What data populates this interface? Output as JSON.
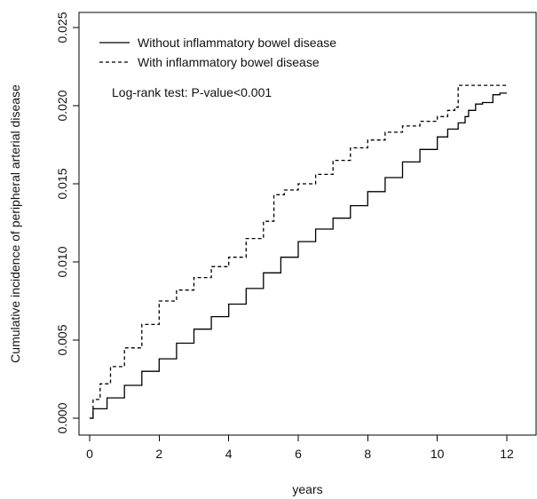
{
  "chart_data": {
    "type": "line",
    "title": "",
    "xlabel": "years",
    "ylabel": "Cumulative incidence of peripheral arterial disease",
    "xlim": [
      0,
      12
    ],
    "ylim": [
      0,
      0.025
    ],
    "xticks": [
      0,
      2,
      4,
      6,
      8,
      10,
      12
    ],
    "xtick_labels": [
      "0",
      "2",
      "4",
      "6",
      "8",
      "10",
      "12"
    ],
    "yticks": [
      0,
      0.005,
      0.01,
      0.015,
      0.02,
      0.025
    ],
    "ytick_labels": [
      "0.000",
      "0.005",
      "0.010",
      "0.015",
      "0.020",
      "0.025"
    ],
    "grid": false,
    "legend_position": "top-left",
    "annotation": "Log-rank test: P-value<0.001",
    "series": [
      {
        "name": "Without inflammatory bowel disease",
        "line_style": "solid",
        "color": "#000000",
        "x": [
          0,
          0.1,
          0.5,
          1.0,
          1.5,
          2.0,
          2.5,
          3.0,
          3.5,
          4.0,
          4.5,
          5.0,
          5.5,
          6.0,
          6.5,
          7.0,
          7.5,
          8.0,
          8.5,
          9.0,
          9.5,
          10.0,
          10.3,
          10.6,
          10.8,
          10.9,
          11.1,
          11.3,
          11.5,
          11.6,
          11.8,
          12.0
        ],
        "y": [
          0,
          0.0006,
          0.0013,
          0.0021,
          0.003,
          0.0038,
          0.0048,
          0.0057,
          0.0065,
          0.0073,
          0.0083,
          0.0093,
          0.0103,
          0.0113,
          0.0121,
          0.0128,
          0.0136,
          0.0145,
          0.0154,
          0.0164,
          0.0172,
          0.018,
          0.0185,
          0.0189,
          0.0193,
          0.0197,
          0.0201,
          0.0202,
          0.0202,
          0.0207,
          0.0208,
          0.0208
        ]
      },
      {
        "name": "With inflammatory bowel disease",
        "line_style": "dashed",
        "color": "#000000",
        "x": [
          0,
          0.1,
          0.3,
          0.6,
          1.0,
          1.5,
          2.0,
          2.5,
          3.0,
          3.5,
          4.0,
          4.5,
          5.0,
          5.3,
          5.6,
          6.0,
          6.5,
          7.0,
          7.5,
          8.0,
          8.5,
          9.0,
          9.5,
          10.0,
          10.3,
          10.5,
          10.6,
          11.0,
          11.5,
          12.0
        ],
        "y": [
          0,
          0.0012,
          0.0022,
          0.0033,
          0.0045,
          0.006,
          0.0075,
          0.0082,
          0.009,
          0.0097,
          0.0103,
          0.0115,
          0.0126,
          0.0143,
          0.0146,
          0.015,
          0.0156,
          0.0165,
          0.0173,
          0.0178,
          0.0183,
          0.0187,
          0.019,
          0.0193,
          0.0197,
          0.0199,
          0.0213,
          0.0213,
          0.0213,
          0.0213
        ]
      }
    ]
  }
}
